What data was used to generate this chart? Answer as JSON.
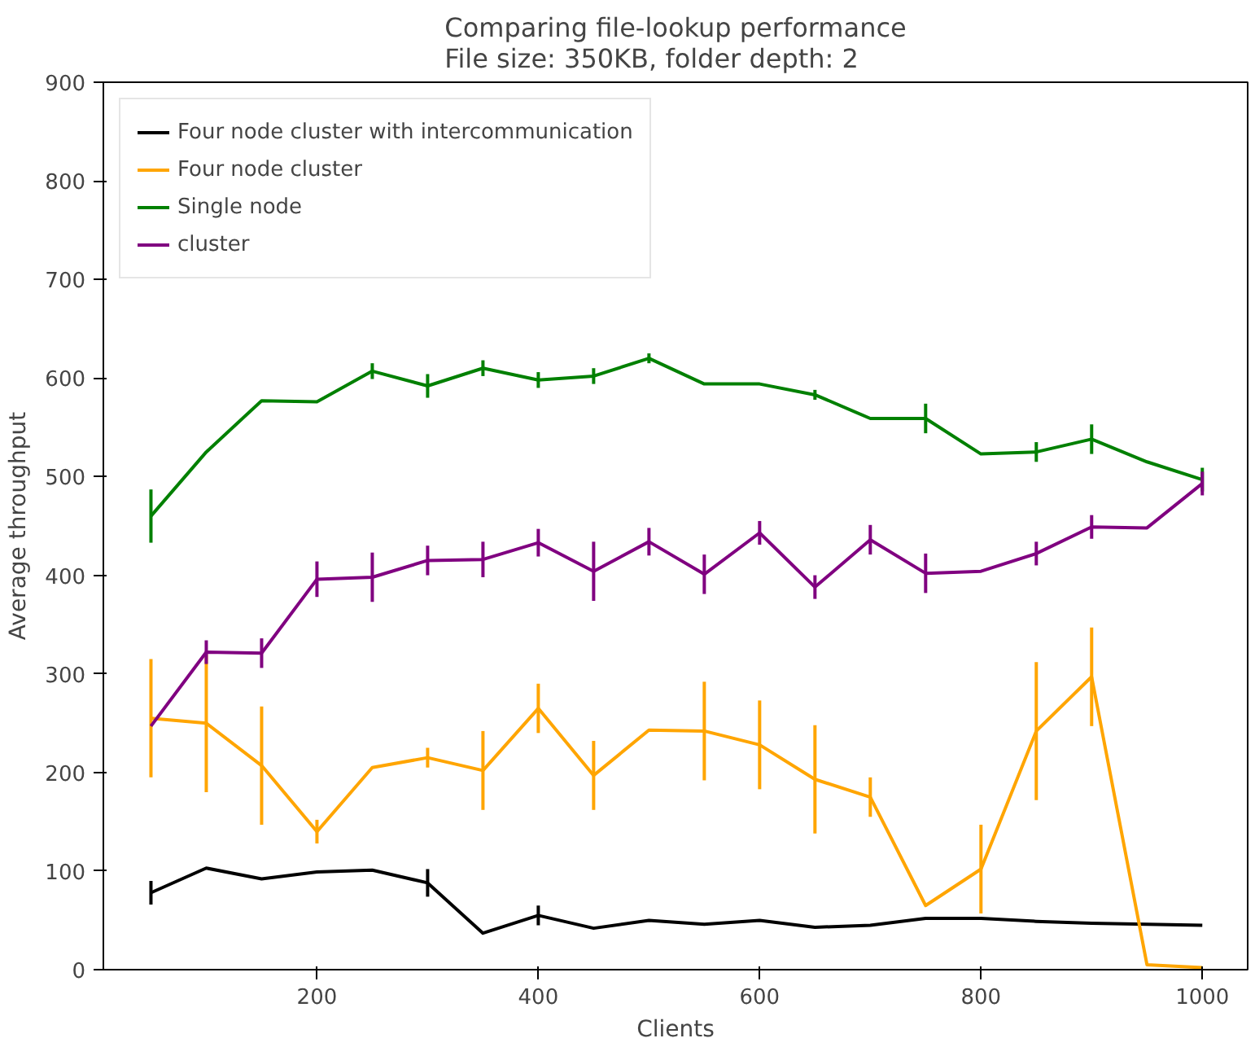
{
  "chart_data": {
    "type": "line",
    "title": "Comparing file-lookup performance\nFile size: 350KB, folder depth: 2",
    "xlabel": "Clients",
    "ylabel": "Average throughput",
    "x": [
      50,
      100,
      150,
      200,
      250,
      300,
      350,
      400,
      450,
      500,
      550,
      600,
      650,
      700,
      750,
      800,
      850,
      900,
      950,
      1000
    ],
    "series": [
      {
        "name": "Four node cluster with intercommunication",
        "color": "#000000",
        "values": [
          78,
          103,
          92,
          99,
          101,
          88,
          37,
          55,
          42,
          50,
          46,
          50,
          43,
          45,
          52,
          52,
          49,
          47,
          46,
          45
        ],
        "errors": [
          12,
          null,
          null,
          null,
          null,
          14,
          null,
          10,
          null,
          null,
          null,
          null,
          null,
          null,
          null,
          null,
          null,
          null,
          null,
          null
        ]
      },
      {
        "name": "Four node cluster",
        "color": "#ffa500",
        "values": [
          255,
          250,
          207,
          140,
          205,
          215,
          202,
          265,
          197,
          243,
          242,
          228,
          193,
          175,
          65,
          102,
          242,
          297,
          5,
          2
        ],
        "errors": [
          60,
          70,
          60,
          12,
          null,
          10,
          40,
          25,
          35,
          null,
          50,
          45,
          55,
          20,
          null,
          45,
          70,
          50,
          null,
          null
        ]
      },
      {
        "name": "Single node",
        "color": "#008000",
        "values": [
          460,
          525,
          577,
          576,
          607,
          592,
          610,
          598,
          602,
          620,
          594,
          594,
          583,
          559,
          559,
          523,
          525,
          538,
          515,
          497
        ],
        "errors": [
          27,
          null,
          null,
          null,
          8,
          12,
          8,
          8,
          8,
          5,
          null,
          null,
          5,
          null,
          15,
          null,
          10,
          15,
          null,
          12
        ]
      },
      {
        "name": "cluster",
        "color": "#800080",
        "values": [
          247,
          322,
          321,
          396,
          398,
          415,
          416,
          433,
          404,
          434,
          401,
          443,
          388,
          436,
          402,
          404,
          422,
          449,
          448,
          493
        ],
        "errors": [
          null,
          12,
          15,
          18,
          25,
          15,
          18,
          14,
          30,
          14,
          20,
          12,
          12,
          15,
          20,
          null,
          12,
          12,
          null,
          12
        ]
      }
    ],
    "xlim": [
      7,
      1041
    ],
    "xticks": [
      200,
      400,
      600,
      800,
      1000
    ],
    "ylim": [
      0,
      900
    ],
    "yticks": [
      0,
      100,
      200,
      300,
      400,
      500,
      600,
      700,
      800,
      900
    ],
    "grid": false,
    "legend": "top left",
    "line_style": "solid",
    "marker": "none"
  }
}
